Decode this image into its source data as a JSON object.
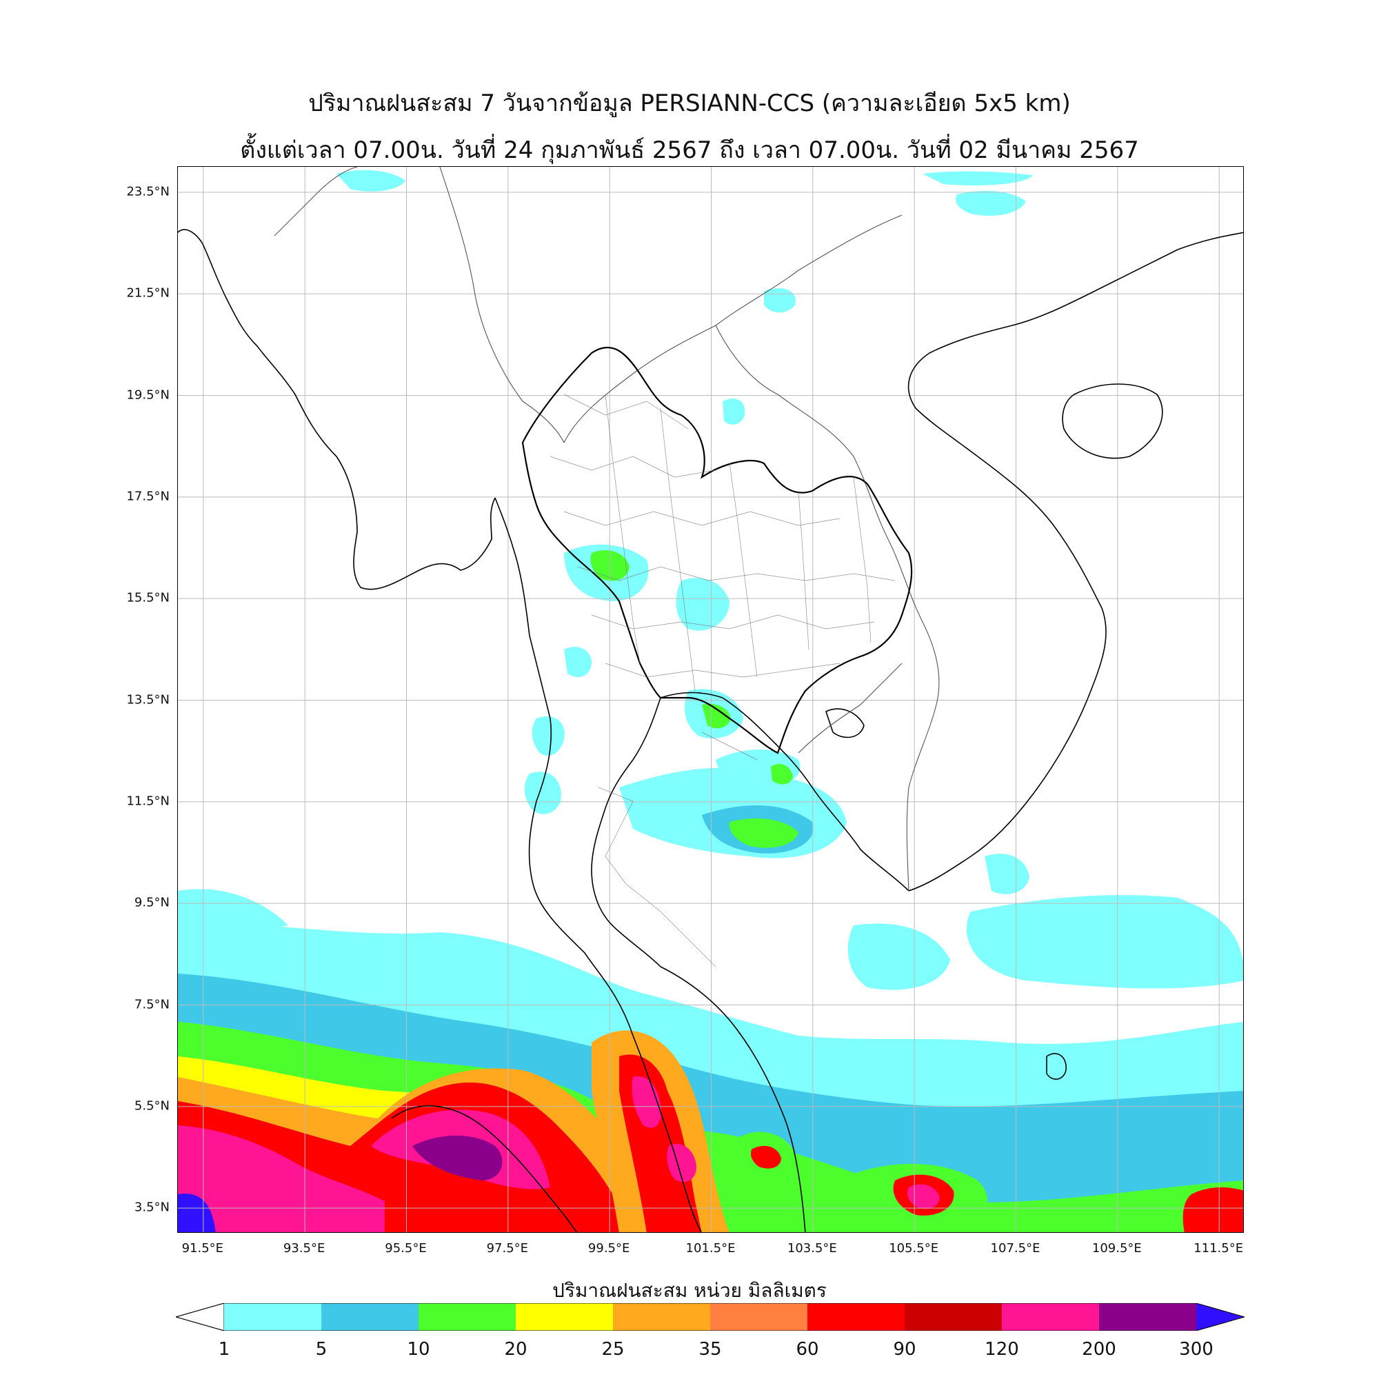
{
  "title": {
    "line1": "ปริมาณฝนสะสม 7 วันจากข้อมูล PERSIANN-CCS (ความละเอียด 5x5 km)",
    "line2": "ตั้งแต่เวลา 07.00น. วันที่ 24 กุมภาพันธ์ 2567 ถึง เวลา 07.00น. วันที่ 02 มีนาคม 2567"
  },
  "map": {
    "lat_range": [
      3.0,
      24.0
    ],
    "lon_range": [
      91.0,
      112.0
    ],
    "lat_ticks": [
      "23.5°N",
      "21.5°N",
      "19.5°N",
      "17.5°N",
      "15.5°N",
      "13.5°N",
      "11.5°N",
      "9.5°N",
      "7.5°N",
      "5.5°N",
      "3.5°N"
    ],
    "lat_values": [
      23.5,
      21.5,
      19.5,
      17.5,
      15.5,
      13.5,
      11.5,
      9.5,
      7.5,
      5.5,
      3.5
    ],
    "lon_ticks": [
      "91.5°E",
      "93.5°E",
      "95.5°E",
      "97.5°E",
      "99.5°E",
      "101.5°E",
      "103.5°E",
      "105.5°E",
      "107.5°E",
      "109.5°E",
      "111.5°E"
    ],
    "lon_values": [
      91.5,
      93.5,
      95.5,
      97.5,
      99.5,
      101.5,
      103.5,
      105.5,
      107.5,
      109.5,
      111.5
    ],
    "grid": true
  },
  "colorbar": {
    "title": "ปริมาณฝนสะสม หน่วย มิลลิเมตร",
    "levels": [
      "1",
      "5",
      "10",
      "20",
      "25",
      "35",
      "60",
      "90",
      "120",
      "200",
      "300"
    ],
    "colors": [
      "#80ffff",
      "#40c8e8",
      "#4cff2c",
      "#ffff00",
      "#ffaa1e",
      "#ff8040",
      "#ff0000",
      "#cc0000",
      "#ff1493",
      "#8b008b"
    ],
    "under_color": "#ffffff",
    "over_color": "#3010ff"
  }
}
